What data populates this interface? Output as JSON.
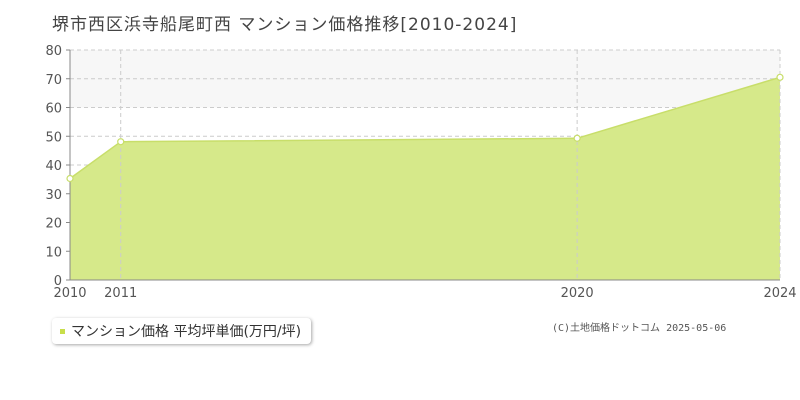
{
  "header": {
    "title": "堺市西区浜寺船尾町西 マンション価格推移[2010-2024]"
  },
  "legend": {
    "label": "マンション価格 平均坪単価(万円/坪)"
  },
  "footer": {
    "copyright": "(C)土地価格ドットコム 2025-05-06"
  },
  "colors": {
    "fill": "#d6e98a",
    "line": "#c8de6a",
    "band": "#f7f7f7",
    "grid": "#cccccc",
    "axis": "#888888",
    "legend_swatch": "#c8de4a"
  },
  "chart_data": {
    "type": "area",
    "title": "堺市西区浜寺船尾町西 マンション価格推移[2010-2024]",
    "xlabel": "",
    "ylabel": "",
    "x": [
      2010,
      2011,
      2020,
      2024
    ],
    "x_tick_labels": [
      "2010",
      "2011",
      "2020",
      "2024"
    ],
    "y_ticks": [
      0,
      10,
      20,
      30,
      40,
      50,
      60,
      70,
      80
    ],
    "ylim": [
      0,
      80
    ],
    "grid": true,
    "legend_position": "bottom-left",
    "series": [
      {
        "name": "マンション価格 平均坪単価(万円/坪)",
        "values": [
          35.3,
          48.1,
          49.3,
          70.5
        ]
      }
    ]
  }
}
